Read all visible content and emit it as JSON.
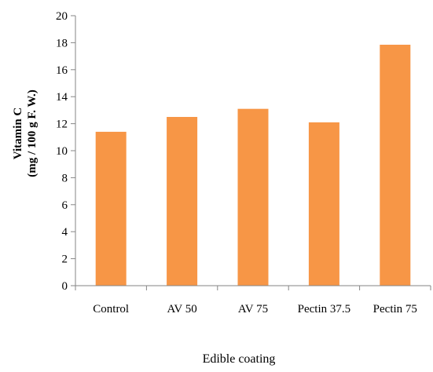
{
  "chart_data": {
    "type": "bar",
    "categories": [
      "Control",
      "AV 50",
      "AV 75",
      "Pectin 37.5",
      "Pectin 75"
    ],
    "values": [
      11.4,
      12.5,
      13.1,
      12.1,
      17.85
    ],
    "xlabel": "Edible coating",
    "ylabel_line1": "Vitamin C",
    "ylabel_line2": "(mg / 100 g F. W.)",
    "ylim": [
      0,
      20
    ],
    "yticks": [
      0,
      2,
      4,
      6,
      8,
      10,
      12,
      14,
      16,
      18,
      20
    ],
    "grid": false,
    "bar_color": "#F79646",
    "axis_color": "#868686"
  }
}
